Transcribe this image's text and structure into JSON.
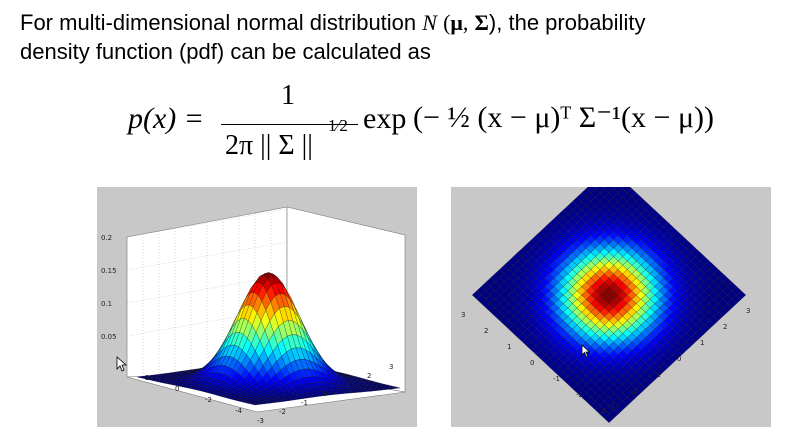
{
  "intro": {
    "line1_before": "For multi-dimensional normal distribution",
    "N": "N",
    "paren_open": "(",
    "mu": "μ",
    "comma": ",",
    "sigma": "Σ",
    "paren_close_after": "), the probability",
    "line2": "density function (pdf) can be calculated as"
  },
  "formula": {
    "lhs": "p(x) =",
    "numerator": "1",
    "denominator": "2π || Σ ||",
    "exponent_half": "1⁄2",
    "exp": "exp",
    "body": "(− ½ (x − μ)ᵀ Σ⁻¹(x − μ))"
  },
  "left_plot": {
    "z_ticks": [
      "0.2",
      "0.15",
      "0.1",
      "0.05"
    ],
    "x_ticks": [
      "2",
      "0",
      "-2",
      "-4"
    ],
    "y_ticks": [
      "-3",
      "-2",
      "-1",
      "0",
      "1",
      "2",
      "3"
    ]
  },
  "right_plot": {
    "left_edge_ticks": [
      "3",
      "2",
      "1",
      "0",
      "-1",
      "-2",
      "-3"
    ],
    "right_edge_ticks": [
      "3",
      "2",
      "1",
      "0",
      "-1",
      "-2",
      "-3"
    ]
  }
}
